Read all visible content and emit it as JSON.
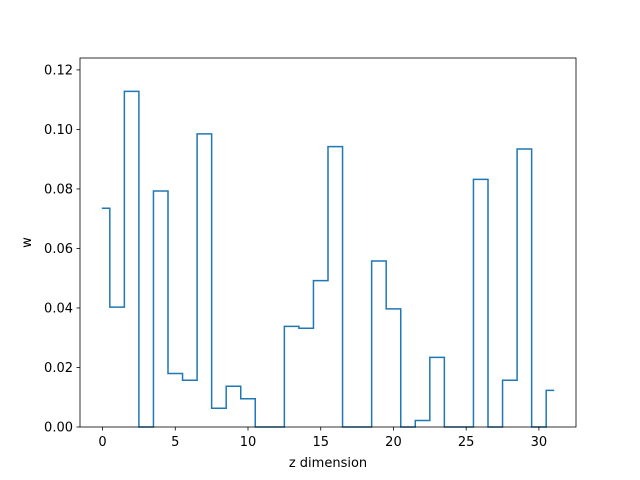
{
  "chart_data": {
    "type": "line",
    "drawstyle": "steps-mid",
    "xlabel": "z dimension",
    "ylabel": "w",
    "xlim": [
      -1.55,
      32.55
    ],
    "ylim": [
      0.0,
      0.124
    ],
    "xticks": [
      0,
      5,
      10,
      15,
      20,
      25,
      30
    ],
    "xtick_labels": [
      "0",
      "5",
      "10",
      "15",
      "20",
      "25",
      "30"
    ],
    "yticks": [
      0.0,
      0.02,
      0.04,
      0.06,
      0.08,
      0.1,
      0.12
    ],
    "ytick_labels": [
      "0.00",
      "0.02",
      "0.04",
      "0.06",
      "0.08",
      "0.10",
      "0.12"
    ],
    "grid": false,
    "series": [
      {
        "color": "#1f77b4",
        "x": [
          0,
          1,
          2,
          3,
          4,
          5,
          6,
          7,
          8,
          9,
          10,
          11,
          12,
          13,
          14,
          15,
          16,
          17,
          18,
          19,
          20,
          21,
          22,
          23,
          24,
          25,
          26,
          27,
          28,
          29,
          30,
          31
        ],
        "y": [
          0.0735,
          0.0403,
          0.1128,
          0.0,
          0.0793,
          0.018,
          0.0157,
          0.0985,
          0.0063,
          0.0137,
          0.0095,
          0.0,
          0.0,
          0.0338,
          0.0332,
          0.0492,
          0.0942,
          0.0,
          0.0,
          0.0558,
          0.0397,
          0.0,
          0.0022,
          0.0234,
          0.0,
          0.0,
          0.0832,
          0.0,
          0.0157,
          0.0934,
          0.0,
          0.0123
        ]
      }
    ]
  }
}
